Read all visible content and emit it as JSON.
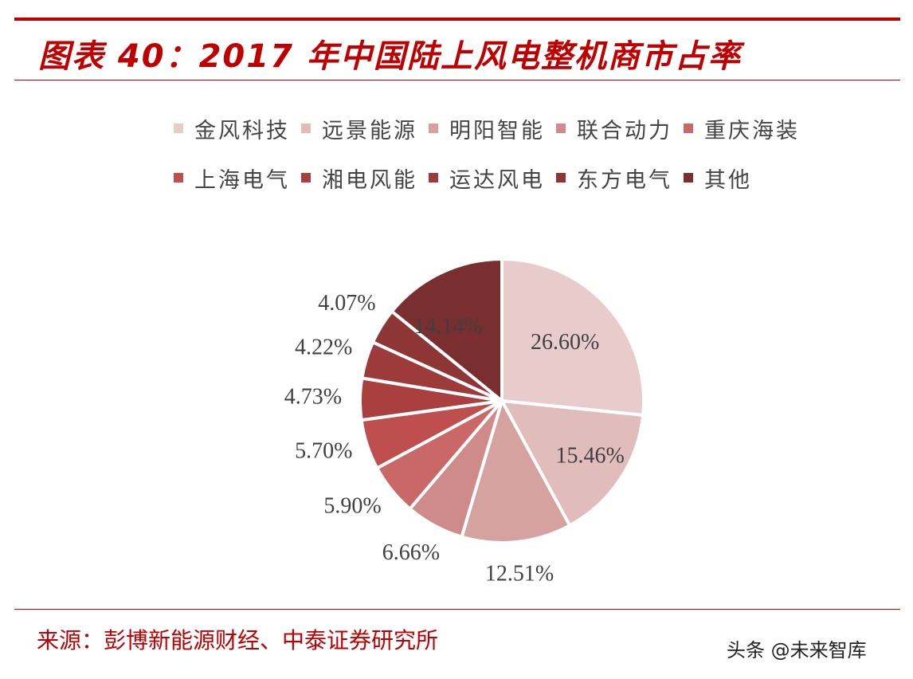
{
  "header": {
    "title": "图表 40：2017 年中国陆上风电整机商市占率"
  },
  "footer": {
    "source": "来源：彭博新能源财经、中泰证券研究所",
    "watermark": "头条 @未来智库"
  },
  "chart_data": {
    "type": "pie",
    "title": "",
    "legend_placement": "top",
    "categories": [
      "金风科技",
      "远景能源",
      "明阳智能",
      "联合动力",
      "重庆海装",
      "上海电气",
      "湘电风能",
      "运达风电",
      "东方电气",
      "其他"
    ],
    "values": [
      26.6,
      15.46,
      12.51,
      6.66,
      5.9,
      5.7,
      4.73,
      4.22,
      4.07,
      14.14
    ],
    "data_labels": [
      "26.60%",
      "15.46%",
      "12.51%",
      "6.66%",
      "5.90%",
      "5.70%",
      "4.73%",
      "4.22%",
      "4.07%",
      "14.14%"
    ],
    "colors": [
      "#e8cccc",
      "#e0bcbb",
      "#d6a2a0",
      "#cf8b89",
      "#c96867",
      "#bf4f4e",
      "#a9403f",
      "#9c3b3a",
      "#8e3536",
      "#7b2e30"
    ]
  }
}
